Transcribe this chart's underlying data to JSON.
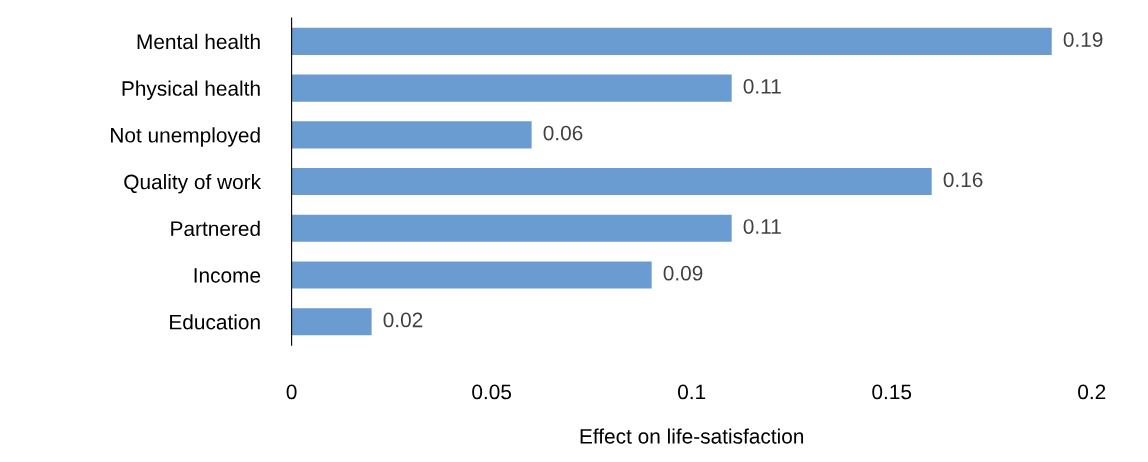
{
  "chart_data": {
    "type": "bar",
    "orientation": "horizontal",
    "xlabel": "Effect on life-satisfaction",
    "categories": [
      "Mental health",
      "Physical health",
      "Not unemployed",
      "Quality of work",
      "Partnered",
      "Income",
      "Education"
    ],
    "values": [
      0.19,
      0.11,
      0.06,
      0.16,
      0.11,
      0.09,
      0.02
    ],
    "color": "#6a9bd1",
    "xlim": [
      0,
      0.2
    ],
    "xticks": [
      0,
      0.05,
      0.1,
      0.15,
      0.2
    ],
    "data_labels": true,
    "grid": false
  }
}
